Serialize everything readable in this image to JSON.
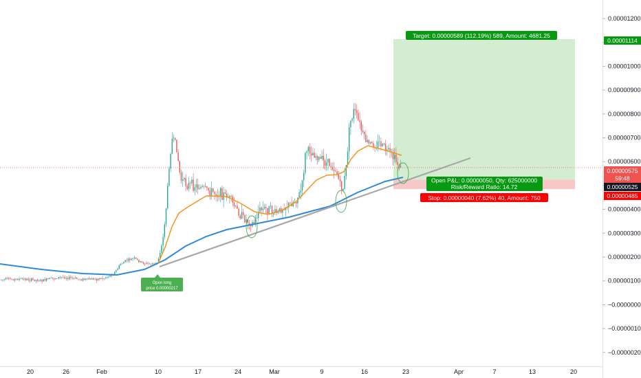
{
  "chart_data": {
    "type": "candlestick",
    "x_ticks": [
      "20",
      "26",
      "Feb",
      "10",
      "17",
      "24",
      "Mar",
      "9",
      "16",
      "23",
      "Apr",
      "7",
      "13",
      "20"
    ],
    "y_ticks": [
      "0.00001200",
      "0.00001100",
      "0.00001000",
      "0.00000900",
      "0.00000800",
      "0.00000700",
      "0.00000600",
      "0.00000500",
      "0.00000400",
      "0.00000300",
      "0.00000200",
      "0.00000100",
      "−0.00000000",
      "−0.00000100",
      "−0.00000200"
    ],
    "ylim": [
      -2.1e-06,
      1.26e-05
    ],
    "price_axis_tags": {
      "target": "0.00001114",
      "current_price": "0.00000575",
      "countdown": "59:48",
      "entry": "0.00000525",
      "stop": "0.00000485"
    },
    "series": [
      {
        "name": "EMA fast",
        "color": "#f7931a"
      },
      {
        "name": "EMA slow",
        "color": "#2e8ad6"
      }
    ],
    "trendline": {
      "color": "#a7a7a7"
    },
    "position": {
      "target_label": "Target: 0.00000589 (112.19%) 589, Amount: 4681.25",
      "pnl_label": "Open P&L: 0.00000050, Qty: 625000000",
      "ratio_label": "Risk/Reward Ratio: 14.72",
      "stop_label": "Stop: 0.00000040 (7.62%) 40, Amount: 750",
      "entry_price": 5.25e-06,
      "target_price": 1.114e-05,
      "stop_price": 4.85e-06
    },
    "note": {
      "line1": "Open long",
      "line2": "price 0.00000217"
    },
    "colors": {
      "up": "#26a69a",
      "down": "#ef5350",
      "profit_zone": "#d4edd2",
      "loss_zone": "#f8c8c9",
      "green_label": "#089912",
      "red_label": "#ff0000",
      "dark_tag": "#131722"
    }
  }
}
